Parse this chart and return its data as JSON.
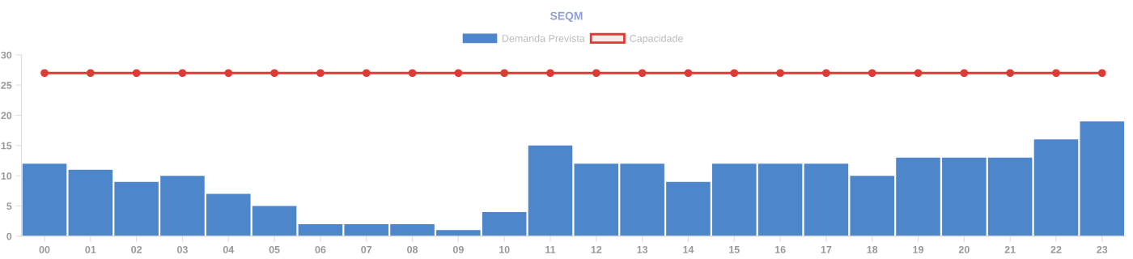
{
  "chart_data": {
    "type": "bar",
    "title": "SEQM",
    "categories": [
      "00",
      "01",
      "02",
      "03",
      "04",
      "05",
      "06",
      "07",
      "08",
      "09",
      "10",
      "11",
      "12",
      "13",
      "14",
      "15",
      "16",
      "17",
      "18",
      "19",
      "20",
      "21",
      "22",
      "23"
    ],
    "series": [
      {
        "name": "Demanda Prevista",
        "color": "#4e86cc",
        "values": [
          12,
          11,
          9,
          10,
          7,
          5,
          2,
          2,
          2,
          1,
          4,
          15,
          12,
          12,
          9,
          12,
          12,
          12,
          10,
          13,
          13,
          13,
          16,
          19
        ]
      },
      {
        "name": "Capacidade",
        "type": "line",
        "color": "#e03a36",
        "marker": "circle",
        "values": [
          27,
          27,
          27,
          27,
          27,
          27,
          27,
          27,
          27,
          27,
          27,
          27,
          27,
          27,
          27,
          27,
          27,
          27,
          27,
          27,
          27,
          27,
          27,
          27
        ]
      }
    ],
    "ylim": [
      0,
      30
    ],
    "yticks": [
      0,
      5,
      10,
      15,
      20,
      25,
      30
    ],
    "grid": false,
    "legend": "top"
  }
}
